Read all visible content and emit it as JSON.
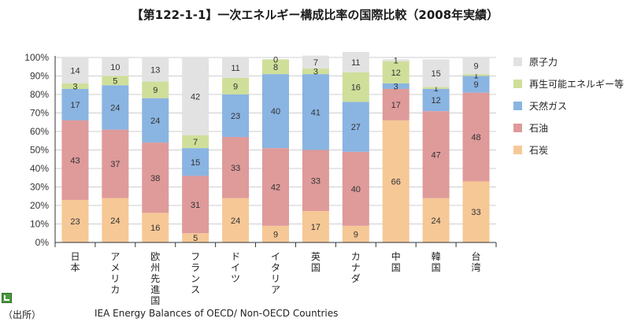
{
  "title": "【第122-1-1】一次エネルギー構成比率の国際比較（2008年実績）",
  "source_label": "（出所）",
  "source_text": "IEA Energy Balances of OECD/ Non-OECD Countries",
  "chart_data": {
    "type": "bar",
    "stacked": true,
    "title": "【第122-1-1】一次エネルギー構成比率の国際比較（2008年実績）",
    "categories": [
      "日本",
      "アメリカ",
      "欧州先進国",
      "フランス",
      "ドイツ",
      "イタリア",
      "英国",
      "カナダ",
      "中国",
      "韓国",
      "台湾"
    ],
    "ylim": [
      0,
      100
    ],
    "yticks": [
      "0%",
      "10%",
      "20%",
      "30%",
      "40%",
      "50%",
      "60%",
      "70%",
      "80%",
      "90%",
      "100%"
    ],
    "grid": true,
    "legend_position": "right",
    "series": [
      {
        "name": "石炭",
        "color": "#f6c896",
        "values": [
          23,
          24,
          16,
          5,
          24,
          9,
          17,
          9,
          66,
          24,
          33
        ]
      },
      {
        "name": "石油",
        "color": "#df9a9a",
        "values": [
          43,
          37,
          38,
          31,
          33,
          42,
          33,
          40,
          17,
          47,
          48
        ]
      },
      {
        "name": "天然ガス",
        "color": "#8ab4e2",
        "values": [
          17,
          24,
          24,
          15,
          23,
          40,
          41,
          27,
          3,
          12,
          9
        ]
      },
      {
        "name": "再生可能エネルギー等",
        "color": "#cfdf9a",
        "values": [
          3,
          5,
          9,
          7,
          9,
          8,
          3,
          16,
          12,
          1,
          1
        ]
      },
      {
        "name": "原子力",
        "color": "#e2e2e2",
        "values": [
          14,
          10,
          13,
          42,
          11,
          0,
          7,
          11,
          1,
          15,
          9
        ]
      }
    ],
    "legend_order": [
      "原子力",
      "再生可能エネルギー等",
      "天然ガス",
      "石油",
      "石炭"
    ]
  }
}
